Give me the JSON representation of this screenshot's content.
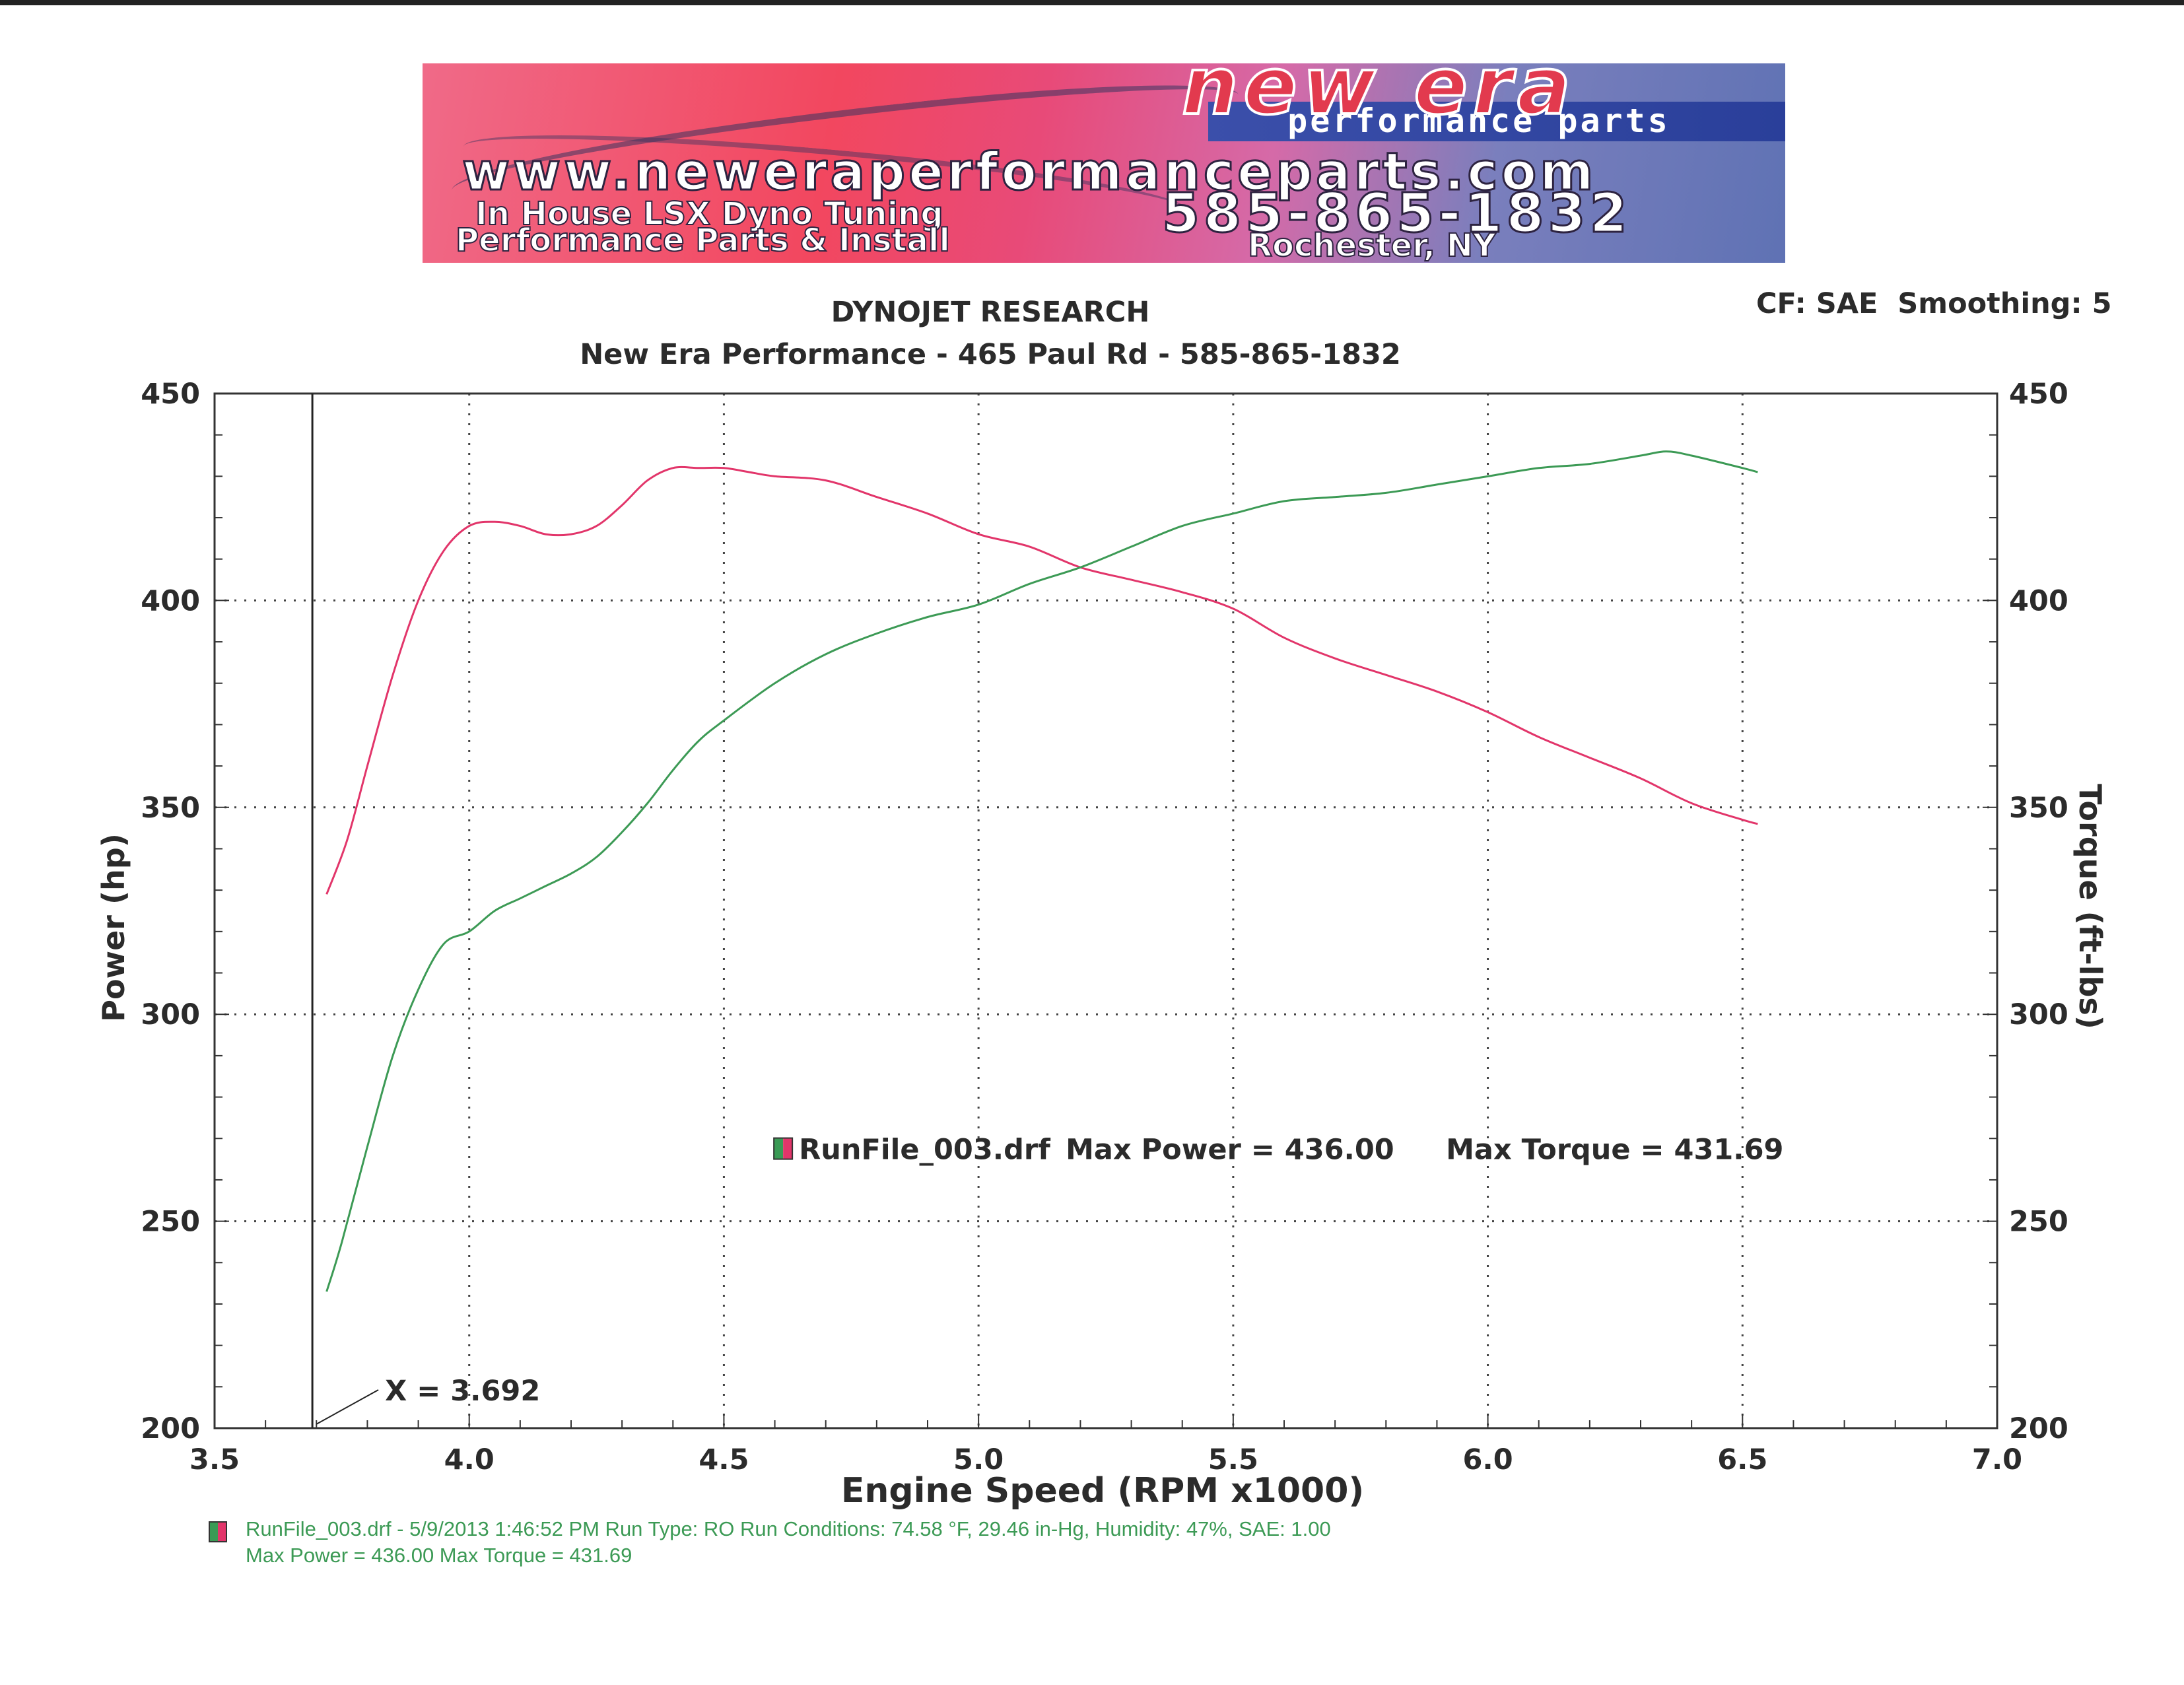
{
  "banner": {
    "logo": "new era",
    "tagline": "performance parts",
    "url": "www.neweraperformanceparts.com",
    "line1": "In House LSX Dyno Tuning",
    "line2": "Performance Parts & Install",
    "phone": "585-865-1832",
    "city": "Rochester, NY"
  },
  "header": {
    "title": "DYNOJET RESEARCH",
    "subtitle": "New Era Performance - 465 Paul Rd - 585-865-1832",
    "correction": "CF: SAE  Smoothing: 5"
  },
  "chart_data": {
    "type": "line",
    "xlabel": "Engine Speed (RPM x1000)",
    "ylabel_left": "Power (hp)",
    "ylabel_right": "Torque (ft-lbs)",
    "xlim": [
      3.5,
      7.0
    ],
    "ylim_left": [
      200,
      450
    ],
    "ylim_right": [
      200,
      450
    ],
    "x_ticks": [
      "3.5",
      "4.0",
      "4.5",
      "5.0",
      "5.5",
      "6.0",
      "6.5",
      "7.0"
    ],
    "y_ticks_left": [
      "200",
      "250",
      "300",
      "350",
      "400",
      "450"
    ],
    "y_ticks_right": [
      "200",
      "250",
      "300",
      "350",
      "400",
      "450"
    ],
    "grid": "dotted",
    "cursor": {
      "x": 3.692,
      "label": "X = 3.692"
    },
    "legend_entry": {
      "label": "RunFile_003.drf",
      "max_power_text": "Max Power = 436.00",
      "max_torque_text": "Max Torque = 431.69"
    },
    "series": [
      {
        "name": "Torque",
        "axis": "right",
        "color": "#e2356a",
        "x": [
          3.72,
          3.76,
          3.8,
          3.85,
          3.9,
          3.95,
          4.0,
          4.05,
          4.1,
          4.15,
          4.2,
          4.25,
          4.3,
          4.35,
          4.4,
          4.45,
          4.5,
          4.55,
          4.6,
          4.7,
          4.8,
          4.9,
          5.0,
          5.1,
          5.2,
          5.3,
          5.4,
          5.5,
          5.6,
          5.7,
          5.8,
          5.9,
          6.0,
          6.1,
          6.2,
          6.3,
          6.4,
          6.5,
          6.53
        ],
        "y": [
          329,
          342,
          360,
          382,
          400,
          412,
          418,
          419,
          418,
          416,
          416,
          418,
          423,
          429,
          432,
          432,
          432,
          431,
          430,
          429,
          425,
          421,
          416,
          413,
          408,
          405,
          402,
          398,
          391,
          386,
          382,
          378,
          373,
          367,
          362,
          357,
          351,
          347,
          346
        ]
      },
      {
        "name": "Power",
        "axis": "left",
        "color": "#3c9a55",
        "x": [
          3.72,
          3.75,
          3.8,
          3.85,
          3.9,
          3.95,
          4.0,
          4.05,
          4.1,
          4.15,
          4.2,
          4.25,
          4.3,
          4.35,
          4.4,
          4.45,
          4.5,
          4.6,
          4.7,
          4.8,
          4.9,
          5.0,
          5.1,
          5.2,
          5.3,
          5.4,
          5.5,
          5.6,
          5.7,
          5.8,
          5.9,
          6.0,
          6.1,
          6.2,
          6.3,
          6.35,
          6.4,
          6.5,
          6.53
        ],
        "y": [
          233,
          245,
          268,
          290,
          306,
          317,
          320,
          325,
          328,
          331,
          334,
          338,
          344,
          351,
          359,
          366,
          371,
          380,
          387,
          392,
          396,
          399,
          404,
          408,
          413,
          418,
          421,
          424,
          425,
          426,
          428,
          430,
          432,
          433,
          435,
          436,
          435,
          432,
          431
        ]
      }
    ]
  },
  "footer": {
    "line1": "RunFile_003.drf - 5/9/2013 1:46:52 PM  Run Type: RO  Run Conditions: 74.58 °F, 29.46 in-Hg,  Humidity:  47%, SAE: 1.00",
    "line2": "Max Power = 436.00  Max Torque = 431.69"
  }
}
